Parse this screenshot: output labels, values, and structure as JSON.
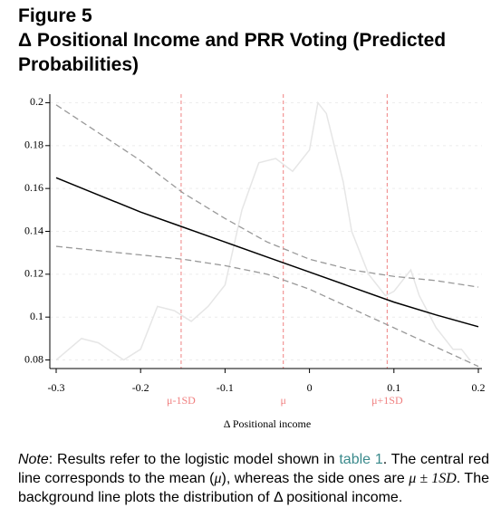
{
  "chart_data": {
    "type": "line",
    "title": "Figure 5",
    "subtitle": "Δ Positional Income and PRR Voting (Predicted Probabilities)",
    "x_label": "Δ Positional income",
    "xlim": [
      -0.3,
      0.2
    ],
    "xticks": [
      -0.3,
      -0.2,
      -0.1,
      0,
      0.1,
      0.2
    ],
    "ylim": [
      0.076,
      0.204
    ],
    "yticks": [
      0.08,
      0.1,
      0.12,
      0.14,
      0.16,
      0.18,
      0.2
    ],
    "grid": true,
    "vlines_color": "#f08080",
    "vlines": [
      {
        "value": -0.152,
        "label": "μ-1SD"
      },
      {
        "value": -0.031,
        "label": "μ"
      },
      {
        "value": 0.092,
        "label": "μ+1SD"
      }
    ],
    "series": [
      {
        "color": "#e6e6e6",
        "dash": false,
        "x": [
          -0.3,
          -0.27,
          -0.25,
          -0.22,
          -0.2,
          -0.18,
          -0.16,
          -0.14,
          -0.12,
          -0.1,
          -0.08,
          -0.06,
          -0.04,
          -0.02,
          0,
          0.01,
          0.02,
          0.04,
          0.05,
          0.07,
          0.09,
          0.1,
          0.12,
          0.13,
          0.15,
          0.17,
          0.18,
          0.19
        ],
        "values": [
          0.08,
          0.09,
          0.088,
          0.08,
          0.085,
          0.105,
          0.103,
          0.098,
          0.105,
          0.115,
          0.15,
          0.172,
          0.174,
          0.168,
          0.178,
          0.2,
          0.195,
          0.163,
          0.14,
          0.12,
          0.11,
          0.112,
          0.122,
          0.11,
          0.095,
          0.085,
          0.085,
          0.08
        ]
      },
      {
        "color": "#999999",
        "dash": true,
        "x": [
          -0.3,
          -0.25,
          -0.2,
          -0.15,
          -0.1,
          -0.05,
          0,
          0.05,
          0.1,
          0.15,
          0.2
        ],
        "values": [
          0.199,
          0.186,
          0.173,
          0.158,
          0.146,
          0.135,
          0.127,
          0.122,
          0.119,
          0.117,
          0.114
        ]
      },
      {
        "color": "#999999",
        "dash": true,
        "x": [
          -0.3,
          -0.25,
          -0.2,
          -0.15,
          -0.1,
          -0.05,
          0,
          0.05,
          0.1,
          0.15,
          0.2
        ],
        "values": [
          0.133,
          0.131,
          0.129,
          0.127,
          0.124,
          0.12,
          0.113,
          0.104,
          0.095,
          0.086,
          0.077
        ]
      },
      {
        "color": "#000000",
        "dash": false,
        "x": [
          -0.3,
          -0.25,
          -0.2,
          -0.15,
          -0.1,
          -0.05,
          0,
          0.05,
          0.1,
          0.15,
          0.2
        ],
        "values": [
          0.165,
          0.157,
          0.149,
          0.142,
          0.135,
          0.128,
          0.121,
          0.114,
          0.107,
          0.101,
          0.0955
        ]
      }
    ]
  },
  "note": [
    "Note",
    ": Results refer to the logistic model shown in ",
    "table 1",
    ". The central red line corresponds to the mean (",
    "μ",
    "), whereas the side ones are ",
    "μ ± 1SD",
    ". The background line plots the distribution of Δ positional income."
  ]
}
